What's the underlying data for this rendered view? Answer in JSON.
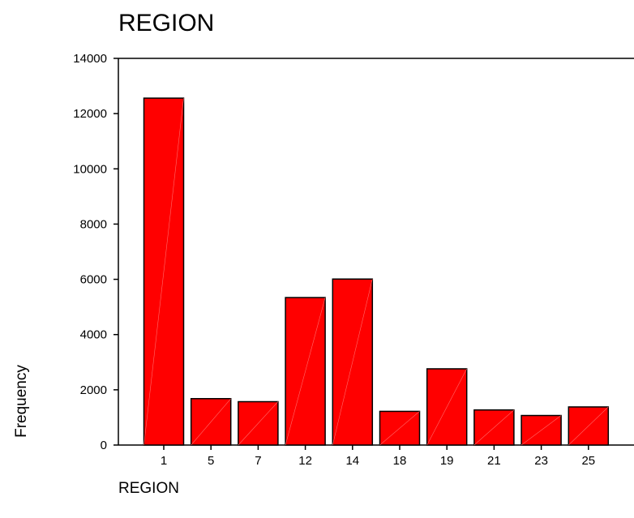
{
  "chart_data": {
    "type": "bar",
    "title": "REGION",
    "xlabel": "REGION",
    "ylabel": "Frequency",
    "categories": [
      "1",
      "5",
      "7",
      "12",
      "14",
      "18",
      "19",
      "21",
      "23",
      "25"
    ],
    "values": [
      12560,
      1680,
      1570,
      5340,
      6010,
      1220,
      2760,
      1270,
      1070,
      1380
    ],
    "ylim": [
      0,
      14000
    ],
    "yticks": [
      "0",
      "2000",
      "4000",
      "6000",
      "8000",
      "10000",
      "12000",
      "14000"
    ],
    "grid": false,
    "bar_color": "#ff0000",
    "edge_color": "#000000"
  }
}
